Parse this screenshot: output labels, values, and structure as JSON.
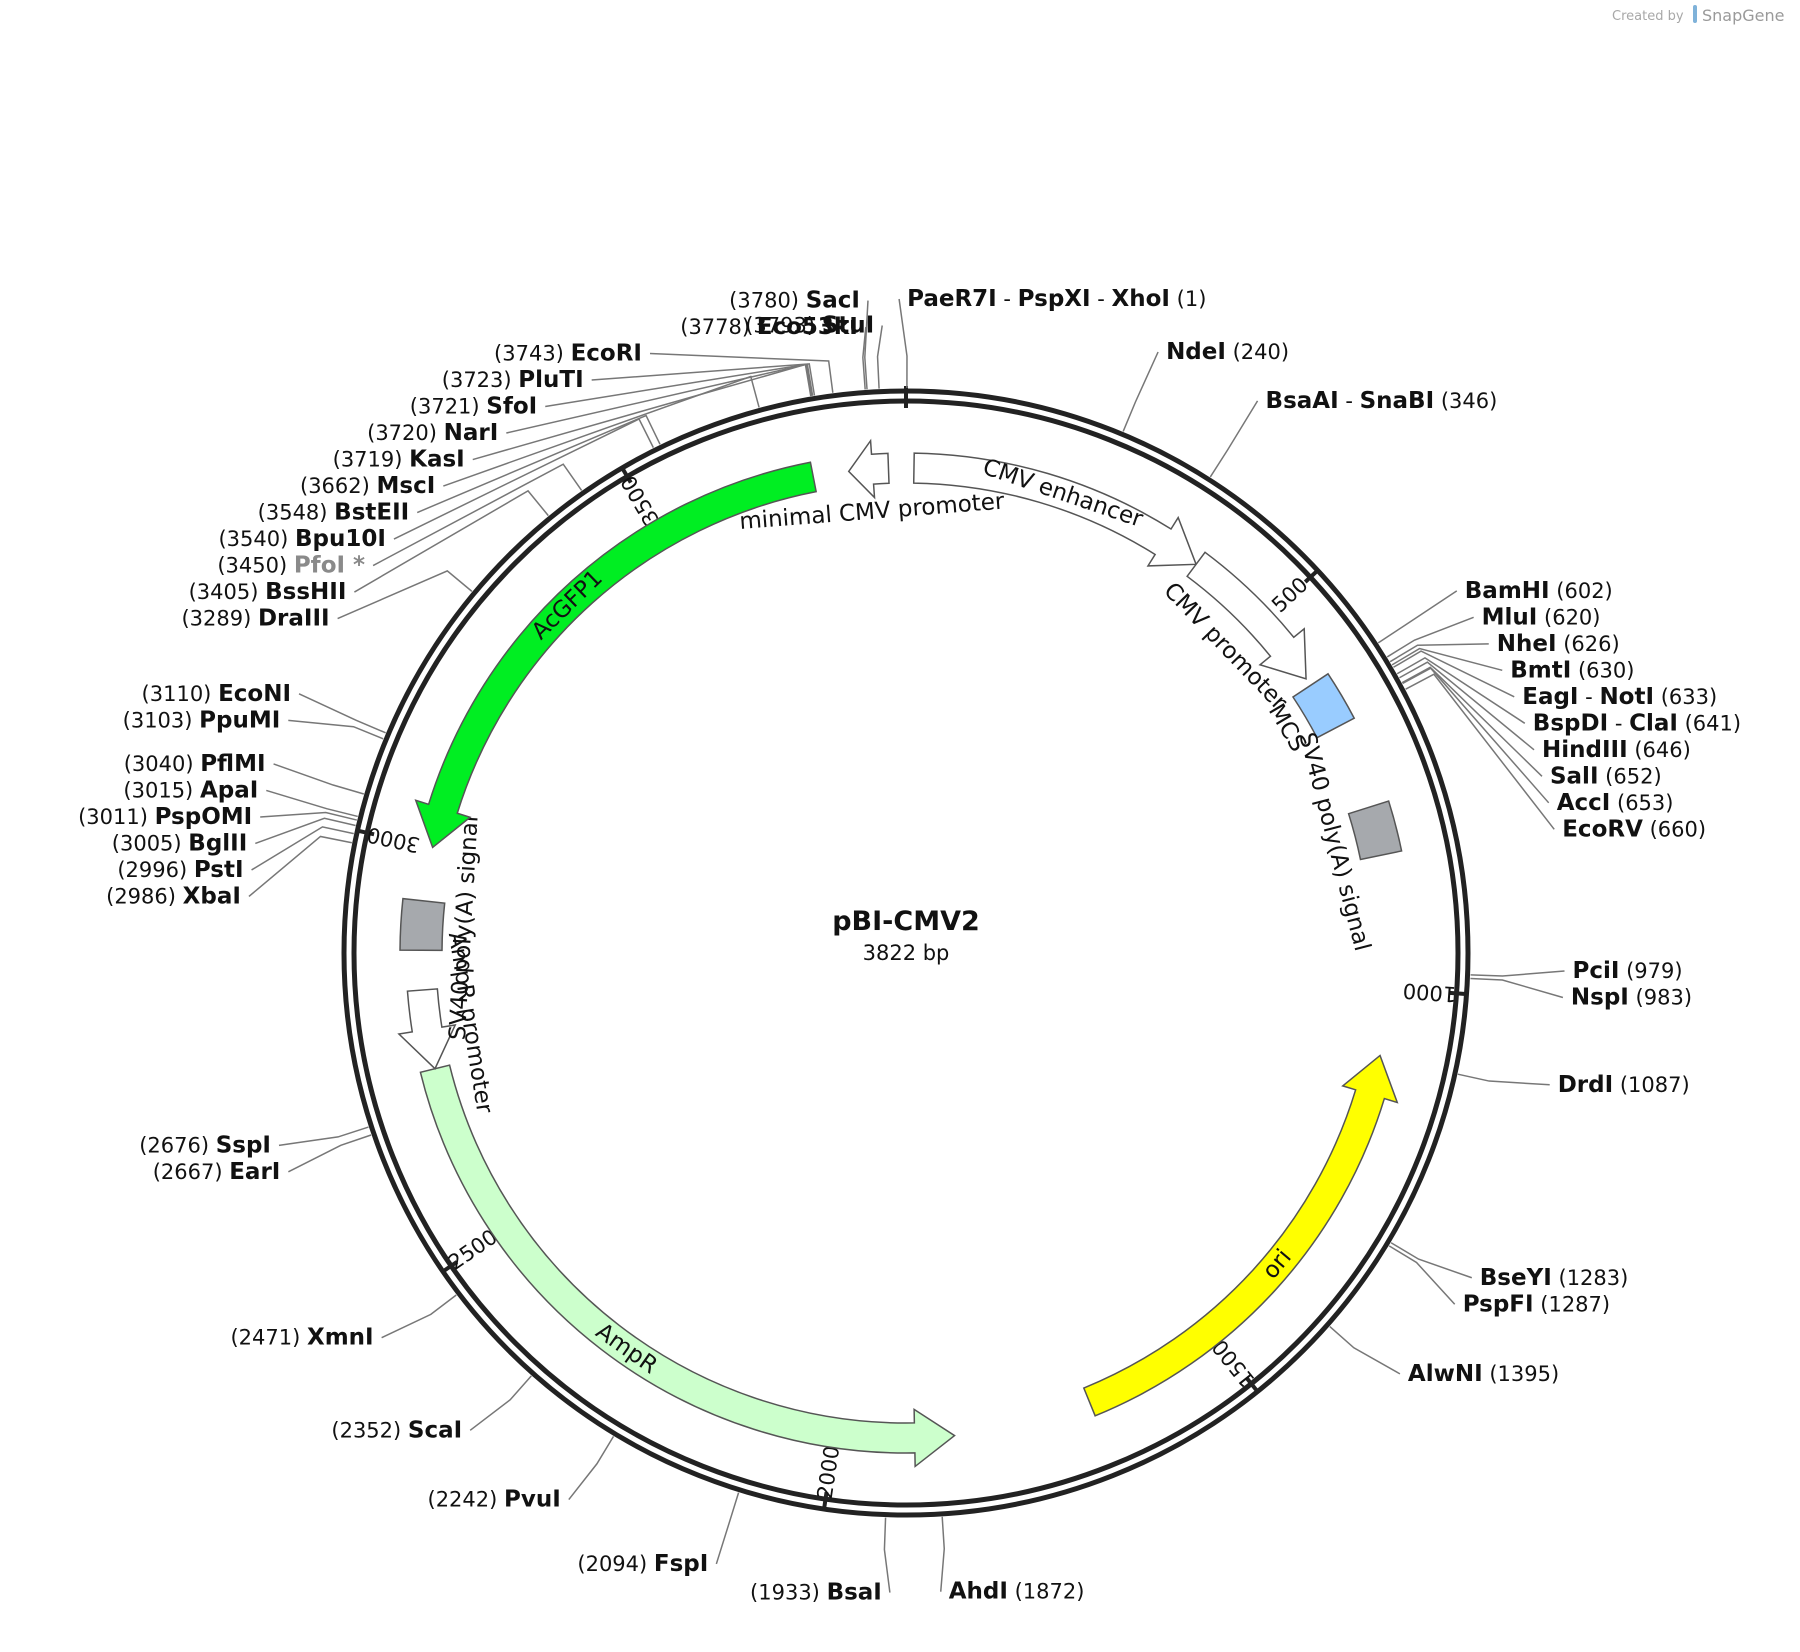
{
  "plasmid": {
    "name": "pBI-CMV2",
    "length_label": "3822 bp",
    "length_bp": 3822
  },
  "branding": {
    "created_by": "Created by",
    "logo_text": "SnapGene"
  },
  "backbone_ticks": [
    {
      "bp": 500,
      "label": "500"
    },
    {
      "bp": 1000,
      "label": "1000"
    },
    {
      "bp": 1500,
      "label": "1500"
    },
    {
      "bp": 2000,
      "label": "2000"
    },
    {
      "bp": 2500,
      "label": "2500"
    },
    {
      "bp": 3000,
      "label": "3000"
    },
    {
      "bp": 3500,
      "label": "3500"
    }
  ],
  "features": [
    {
      "id": "cmv-enhancer",
      "label": "CMV enhancer",
      "start": 10,
      "end": 390,
      "color": "#ffffff",
      "direction": "cw",
      "shape": "arrow"
    },
    {
      "id": "cmv-promoter",
      "label": "CMV promoter",
      "start": 390,
      "end": 590,
      "color": "#ffffff",
      "direction": "cw",
      "shape": "arrow"
    },
    {
      "id": "mcs",
      "label": "MCS",
      "start": 600,
      "end": 662,
      "color": "#99ccff",
      "direction": "none",
      "shape": "box"
    },
    {
      "id": "sv40-polya-right",
      "label": "SV40 poly(A) signal",
      "start": 770,
      "end": 832,
      "color": "#a6a9ad",
      "direction": "none",
      "shape": "box"
    },
    {
      "id": "ori",
      "label": "ori",
      "start": 1085,
      "end": 1675,
      "color": "#ffff00",
      "direction": "ccw",
      "shape": "arrow"
    },
    {
      "id": "ampr",
      "label": "AmpR",
      "start": 1850,
      "end": 2720,
      "color": "#ccffcc",
      "direction": "ccw",
      "shape": "arrow"
    },
    {
      "id": "ampr-promoter",
      "label": "AmpR promoter",
      "start": 2720,
      "end": 2820,
      "color": "#ffffff",
      "direction": "ccw",
      "shape": "arrow"
    },
    {
      "id": "sv40-polya-left",
      "label": "SV40 poly(A) signal",
      "start": 2870,
      "end": 2932,
      "color": "#a6a9ad",
      "direction": "none",
      "shape": "box"
    },
    {
      "id": "acgfp1",
      "label": "AcGFP1",
      "start": 3000,
      "end": 3705,
      "color": "#00ee22",
      "direction": "ccw",
      "shape": "arrow"
    },
    {
      "id": "minimal-cmv-promoter",
      "label": "minimal CMV promoter",
      "start": 3750,
      "end": 3800,
      "color": "#ffffff",
      "direction": "ccw",
      "shape": "arrow"
    }
  ],
  "restriction_sites": [
    {
      "names": [
        "StuI"
      ],
      "pos": "(3793)",
      "side": "right"
    },
    {
      "names": [
        "PaeR7I",
        "PspXI",
        "XhoI"
      ],
      "pos": "(1)",
      "side": "right"
    },
    {
      "names": [
        "NdeI"
      ],
      "pos": "(240)",
      "side": "right"
    },
    {
      "names": [
        "BsaAI",
        "SnaBI"
      ],
      "pos": "(346)",
      "side": "right"
    },
    {
      "names": [
        "BamHI"
      ],
      "pos": "(602)",
      "side": "right"
    },
    {
      "names": [
        "MluI"
      ],
      "pos": "(620)",
      "side": "right"
    },
    {
      "names": [
        "NheI"
      ],
      "pos": "(626)",
      "side": "right"
    },
    {
      "names": [
        "BmtI"
      ],
      "pos": "(630)",
      "side": "right"
    },
    {
      "names": [
        "EagI",
        "NotI"
      ],
      "pos": "(633)",
      "side": "right"
    },
    {
      "names": [
        "BspDI",
        "ClaI"
      ],
      "pos": "(641)",
      "side": "right"
    },
    {
      "names": [
        "HindIII"
      ],
      "pos": "(646)",
      "side": "right"
    },
    {
      "names": [
        "SalI"
      ],
      "pos": "(652)",
      "side": "right"
    },
    {
      "names": [
        "AccI"
      ],
      "pos": "(653)",
      "side": "right"
    },
    {
      "names": [
        "EcoRV"
      ],
      "pos": "(660)",
      "side": "right"
    },
    {
      "names": [
        "PciI"
      ],
      "pos": "(979)",
      "side": "right"
    },
    {
      "names": [
        "NspI"
      ],
      "pos": "(983)",
      "side": "right"
    },
    {
      "names": [
        "DrdI"
      ],
      "pos": "(1087)",
      "side": "right"
    },
    {
      "names": [
        "BseYI"
      ],
      "pos": "(1283)",
      "side": "right"
    },
    {
      "names": [
        "PspFI"
      ],
      "pos": "(1287)",
      "side": "right"
    },
    {
      "names": [
        "AlwNI"
      ],
      "pos": "(1395)",
      "side": "right"
    },
    {
      "names": [
        "AhdI"
      ],
      "pos": "(1872)",
      "side": "right"
    },
    {
      "names": [
        "BsaI"
      ],
      "pos": "(1933)",
      "side": "left"
    },
    {
      "names": [
        "FspI"
      ],
      "pos": "(2094)",
      "side": "left"
    },
    {
      "names": [
        "PvuI"
      ],
      "pos": "(2242)",
      "side": "left"
    },
    {
      "names": [
        "ScaI"
      ],
      "pos": "(2352)",
      "side": "left"
    },
    {
      "names": [
        "XmnI"
      ],
      "pos": "(2471)",
      "side": "left"
    },
    {
      "names": [
        "EarI"
      ],
      "pos": "(2667)",
      "side": "left"
    },
    {
      "names": [
        "SspI"
      ],
      "pos": "(2676)",
      "side": "left"
    },
    {
      "names": [
        "XbaI"
      ],
      "pos": "(2986)",
      "side": "left"
    },
    {
      "names": [
        "PstI"
      ],
      "pos": "(2996)",
      "side": "left"
    },
    {
      "names": [
        "BglII"
      ],
      "pos": "(3005)",
      "side": "left"
    },
    {
      "names": [
        "PspOMI"
      ],
      "pos": "(3011)",
      "side": "left"
    },
    {
      "names": [
        "ApaI"
      ],
      "pos": "(3015)",
      "side": "left"
    },
    {
      "names": [
        "PflMI"
      ],
      "pos": "(3040)",
      "side": "left"
    },
    {
      "names": [
        "PpuMI"
      ],
      "pos": "(3103)",
      "side": "left"
    },
    {
      "names": [
        "EcoNI"
      ],
      "pos": "(3110)",
      "side": "left"
    },
    {
      "names": [
        "DraIII"
      ],
      "pos": "(3289)",
      "side": "left"
    },
    {
      "names": [
        "BssHII"
      ],
      "pos": "(3405)",
      "side": "left"
    },
    {
      "names": [
        "PfoI *"
      ],
      "pos": "(3450)",
      "side": "left",
      "muted": true
    },
    {
      "names": [
        "Bpu10I"
      ],
      "pos": "(3540)",
      "side": "left"
    },
    {
      "names": [
        "BstEII"
      ],
      "pos": "(3548)",
      "side": "left"
    },
    {
      "names": [
        "MscI"
      ],
      "pos": "(3662)",
      "side": "left"
    },
    {
      "names": [
        "KasI"
      ],
      "pos": "(3719)",
      "side": "left"
    },
    {
      "names": [
        "NarI"
      ],
      "pos": "(3720)",
      "side": "left"
    },
    {
      "names": [
        "SfoI"
      ],
      "pos": "(3721)",
      "side": "left"
    },
    {
      "names": [
        "PluTI"
      ],
      "pos": "(3723)",
      "side": "left"
    },
    {
      "names": [
        "EcoRI"
      ],
      "pos": "(3743)",
      "side": "left"
    },
    {
      "names": [
        "Eco53kI"
      ],
      "pos": "(3778)",
      "side": "left"
    },
    {
      "names": [
        "SacI"
      ],
      "pos": "(3780)",
      "side": "left"
    }
  ]
}
